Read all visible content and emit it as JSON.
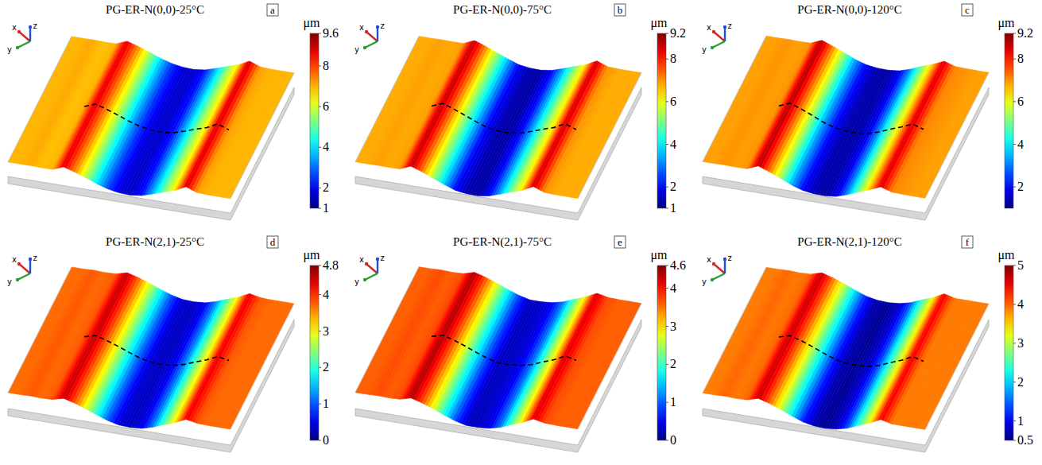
{
  "axis_letters": [
    "x",
    "y",
    "z"
  ],
  "chart_data": [
    {
      "type": "surface",
      "title": "PG-ER-N(0,0)-25°C",
      "panel_label": "a",
      "unit": "μm",
      "colorbar_range": [
        1,
        9.6
      ],
      "colorbar_ticks": [
        1,
        2,
        4,
        6,
        8,
        9.6
      ],
      "profile": [
        7,
        7,
        7.1,
        6.9,
        7,
        8.8,
        7.4,
        5.8,
        4,
        2.6,
        1.8,
        1.6,
        2.2,
        3.6,
        5.2,
        6.6,
        8.9,
        7.2,
        7,
        7,
        7
      ]
    },
    {
      "type": "surface",
      "title": "PG-ER-N(0,0)-75°C",
      "panel_label": "b",
      "unit": "μm",
      "colorbar_range": [
        1,
        9.2
      ],
      "colorbar_ticks": [
        1,
        2,
        4,
        6,
        8,
        9.2
      ],
      "profile": [
        6.8,
        6.8,
        6.9,
        6.8,
        6.9,
        8.7,
        7.2,
        5.4,
        3.6,
        2,
        1.4,
        1.3,
        2,
        3.4,
        5,
        6.4,
        8.6,
        7,
        6.8,
        6.8,
        6.8
      ]
    },
    {
      "type": "surface",
      "title": "PG-ER-N(0,0)-120°C",
      "panel_label": "c",
      "unit": "μm",
      "colorbar_range": [
        1,
        9.2
      ],
      "colorbar_ticks": [
        2,
        4,
        6,
        8,
        9.2
      ],
      "profile": [
        6.9,
        6.9,
        7,
        6.9,
        7,
        8.8,
        7.2,
        5.4,
        3.4,
        2,
        1.4,
        1.3,
        1.8,
        3.2,
        5,
        6.6,
        8.5,
        7.1,
        7,
        6.9,
        6.9
      ]
    },
    {
      "type": "surface",
      "title": "PG-ER-N(2,1)-25°C",
      "panel_label": "d",
      "unit": "μm",
      "colorbar_range": [
        0,
        4.8
      ],
      "colorbar_ticks": [
        0,
        1,
        2,
        3,
        4,
        4.8
      ],
      "profile": [
        3.7,
        3.7,
        3.8,
        3.7,
        3.8,
        4.5,
        3.8,
        2.9,
        1.9,
        1,
        0.4,
        0.3,
        0.5,
        1.2,
        2.2,
        3.1,
        4.3,
        3.8,
        3.7,
        3.7,
        3.7
      ]
    },
    {
      "type": "surface",
      "title": "PG-ER-N(2,1)-75°C",
      "panel_label": "e",
      "unit": "μm",
      "colorbar_range": [
        0,
        4.6
      ],
      "colorbar_ticks": [
        0,
        1,
        2,
        3,
        4,
        4.6
      ],
      "profile": [
        3.6,
        3.6,
        3.7,
        3.6,
        3.7,
        4.4,
        3.7,
        2.8,
        1.8,
        0.9,
        0.3,
        0.3,
        0.5,
        1.1,
        2.1,
        3,
        4.2,
        3.7,
        3.6,
        3.6,
        3.6
      ]
    },
    {
      "type": "surface",
      "title": "PG-ER-N(2,1)-120°C",
      "panel_label": "f",
      "unit": "μm",
      "colorbar_range": [
        0.5,
        5
      ],
      "colorbar_ticks": [
        0.5,
        1,
        2,
        3,
        4,
        5
      ],
      "profile": [
        3.9,
        3.9,
        4,
        3.9,
        4,
        4.7,
        4,
        3.1,
        2.1,
        1.2,
        0.7,
        0.6,
        0.8,
        1.4,
        2.4,
        3.3,
        4.5,
        3.9,
        3.9,
        3.9,
        3.9
      ]
    }
  ]
}
